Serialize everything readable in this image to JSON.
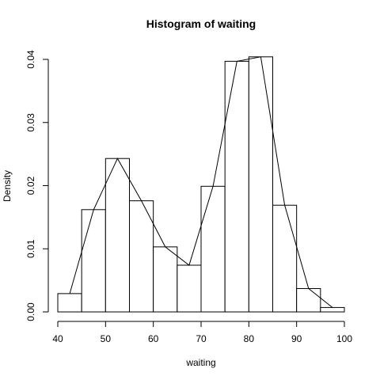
{
  "chart_data": {
    "type": "bar",
    "title": "Histogram of waiting",
    "xlabel": "waiting",
    "ylabel": "Density",
    "xlim": [
      40,
      100
    ],
    "ylim": [
      0,
      0.04
    ],
    "xticks": [
      "40",
      "50",
      "60",
      "70",
      "80",
      "90",
      "100"
    ],
    "yticks": [
      "0.00",
      "0.01",
      "0.02",
      "0.03",
      "0.04"
    ],
    "bins": [
      {
        "start": 40,
        "end": 45,
        "density": 0.0029
      },
      {
        "start": 45,
        "end": 50,
        "density": 0.0162
      },
      {
        "start": 50,
        "end": 55,
        "density": 0.0243
      },
      {
        "start": 55,
        "end": 60,
        "density": 0.0176
      },
      {
        "start": 60,
        "end": 65,
        "density": 0.0103
      },
      {
        "start": 65,
        "end": 70,
        "density": 0.0074
      },
      {
        "start": 70,
        "end": 75,
        "density": 0.0199
      },
      {
        "start": 75,
        "end": 80,
        "density": 0.0397
      },
      {
        "start": 80,
        "end": 85,
        "density": 0.0404
      },
      {
        "start": 85,
        "end": 90,
        "density": 0.0169
      },
      {
        "start": 90,
        "end": 95,
        "density": 0.0037
      },
      {
        "start": 95,
        "end": 100,
        "density": 0.0007
      }
    ],
    "series": [
      {
        "type": "line",
        "x": [
          42.5,
          47.5,
          52.5,
          57.5,
          62.5,
          67.5,
          72.5,
          77.5,
          82.5,
          87.5,
          92.5,
          97.5
        ],
        "y": [
          0.0029,
          0.0162,
          0.0243,
          0.0176,
          0.0103,
          0.0074,
          0.0199,
          0.0397,
          0.0404,
          0.0169,
          0.0037,
          0.0007
        ]
      }
    ],
    "grid": false,
    "colors": {
      "bar_fill": "#ffffff",
      "stroke": "#000000"
    }
  }
}
